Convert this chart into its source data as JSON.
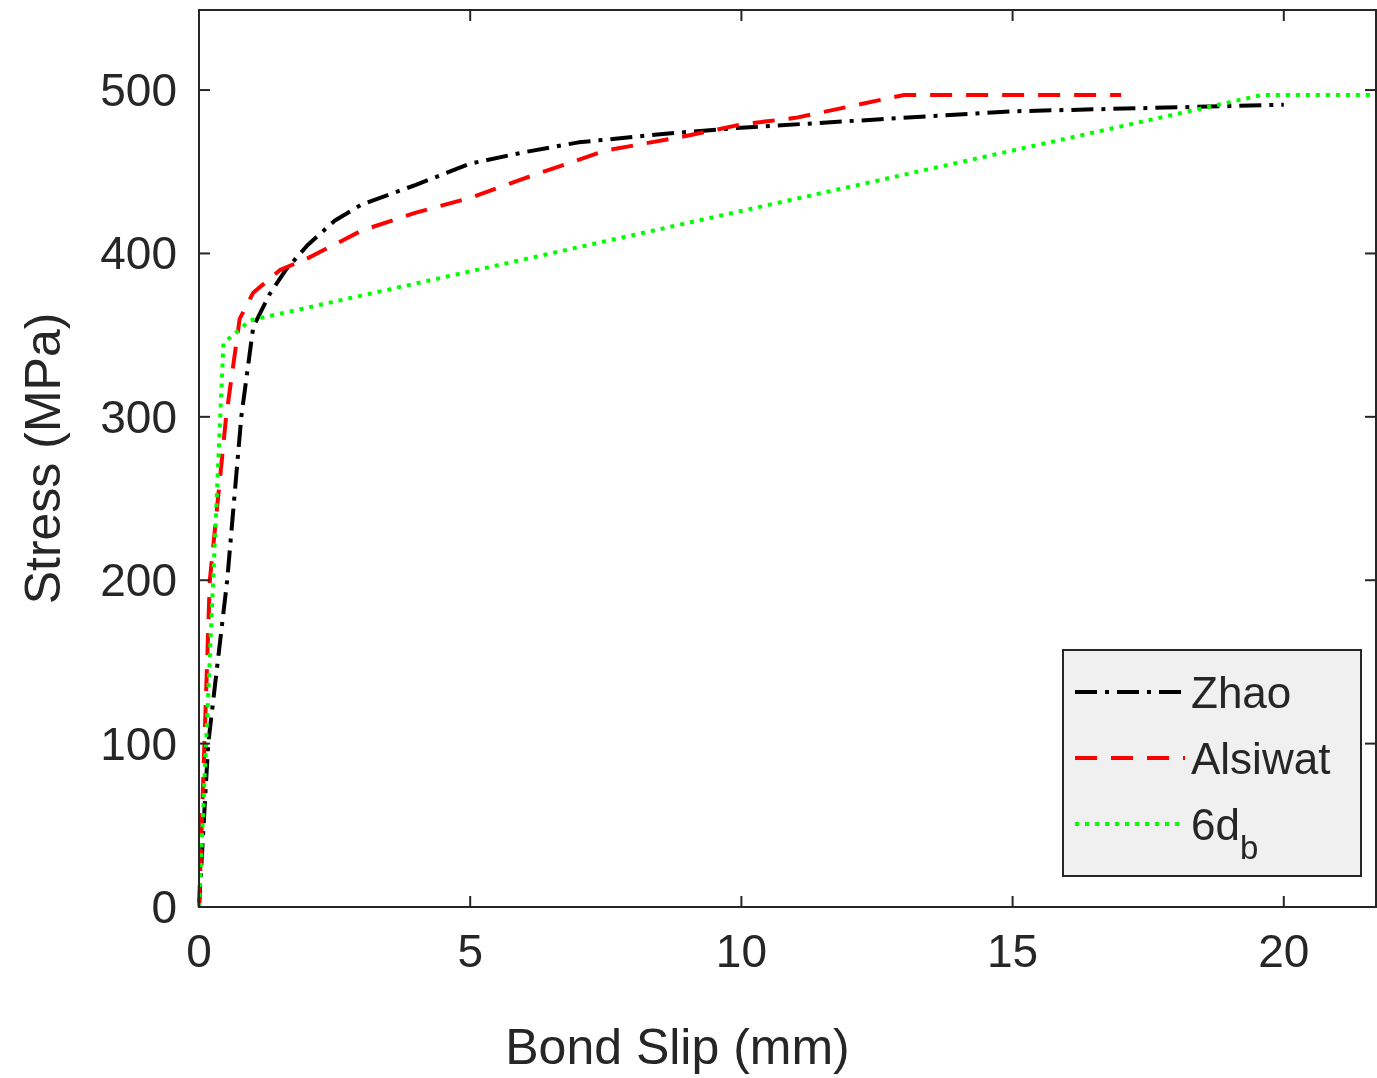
{
  "chart_data": {
    "type": "line",
    "xlabel": "Bond Slip (mm)",
    "ylabel": "Stress (MPa)",
    "xlim": [
      0,
      21.7
    ],
    "ylim": [
      0,
      549
    ],
    "xticks": [
      0,
      5,
      10,
      15,
      20
    ],
    "yticks": [
      0,
      100,
      200,
      300,
      400,
      500
    ],
    "grid": false,
    "legend": "bottom right",
    "series": [
      {
        "name": "Zhao",
        "color": "#000000",
        "line_style": "dashdot",
        "x": [
          0,
          0.17,
          0.52,
          0.78,
          1.0,
          1.3,
          1.6,
          2,
          2.5,
          3,
          4,
          5,
          6,
          7,
          8.5,
          10,
          12.5,
          15,
          17.5,
          20
        ],
        "values": [
          0,
          100,
          200,
          300,
          355,
          375,
          390,
          405,
          420,
          430,
          442,
          455,
          462,
          468,
          473,
          477,
          482,
          487,
          489,
          491
        ]
      },
      {
        "name": "Alsiwat",
        "color": "#ff0000",
        "line_style": "dashed",
        "x": [
          0,
          0.2,
          0.5,
          0.75,
          1.0,
          1.5,
          2,
          3,
          4,
          5,
          6,
          7.5,
          9,
          10,
          11,
          12,
          13,
          17
        ],
        "values": [
          0,
          200,
          300,
          360,
          376,
          390,
          397,
          414,
          425,
          434,
          446,
          463,
          472,
          479,
          483,
          490,
          497,
          497
        ]
      },
      {
        "name": "6d$_{b}$",
        "color": "#00ff00",
        "line_style": "dotted",
        "x": [
          0,
          0.45,
          0.94,
          19.6,
          21.7
        ],
        "values": [
          0,
          345,
          359,
          497,
          497
        ]
      }
    ]
  }
}
